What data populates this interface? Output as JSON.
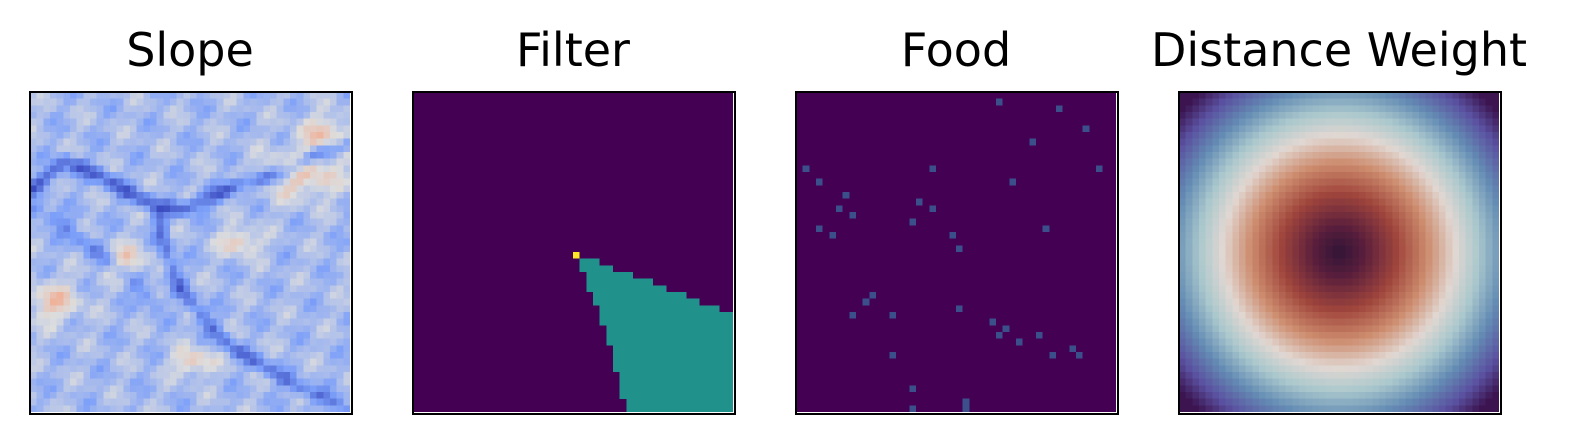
{
  "chart_data": [
    {
      "type": "heatmap",
      "title": "Slope",
      "grid": false,
      "colormap": "coolwarm",
      "grid_size": [
        48,
        48
      ],
      "description": "Terrain slope field; mostly light-blue with dark-blue ridge lines and light-red patches in the upper-right and lower-left"
    },
    {
      "type": "heatmap",
      "title": "Filter",
      "grid": false,
      "colormap": "viridis",
      "grid_size": [
        48,
        48
      ],
      "apex_cell": [
        24,
        24
      ],
      "apex_value": 1.0,
      "wedge_value": 0.5,
      "background_value": 0.0,
      "wedge_boundary_rows": [
        {
          "row": 25,
          "from_col": 25,
          "to_col": 27
        },
        {
          "row": 26,
          "from_col": 25,
          "to_col": 29
        },
        {
          "row": 27,
          "from_col": 26,
          "to_col": 32
        },
        {
          "row": 28,
          "from_col": 26,
          "to_col": 35
        },
        {
          "row": 29,
          "from_col": 26,
          "to_col": 37
        },
        {
          "row": 30,
          "from_col": 27,
          "to_col": 40
        },
        {
          "row": 31,
          "from_col": 27,
          "to_col": 42
        },
        {
          "row": 32,
          "from_col": 28,
          "to_col": 45
        },
        {
          "row": 33,
          "from_col": 28,
          "to_col": 47
        },
        {
          "row": 36,
          "from_col": 29,
          "to_col": 47
        },
        {
          "row": 40,
          "from_col": 30,
          "to_col": 47
        },
        {
          "row": 44,
          "from_col": 31,
          "to_col": 47
        },
        {
          "row": 47,
          "from_col": 32,
          "to_col": 47
        }
      ]
    },
    {
      "type": "heatmap",
      "title": "Food",
      "grid": false,
      "colormap": "viridis",
      "grid_size": [
        48,
        48
      ],
      "background_value": 0.0,
      "food_cells": [
        {
          "col": 30,
          "row": 1
        },
        {
          "col": 39,
          "row": 2
        },
        {
          "col": 43,
          "row": 5
        },
        {
          "col": 35,
          "row": 7
        },
        {
          "col": 1,
          "row": 11
        },
        {
          "col": 20,
          "row": 11
        },
        {
          "col": 45,
          "row": 11
        },
        {
          "col": 3,
          "row": 13
        },
        {
          "col": 32,
          "row": 13
        },
        {
          "col": 7,
          "row": 15
        },
        {
          "col": 18,
          "row": 16
        },
        {
          "col": 6,
          "row": 17
        },
        {
          "col": 20,
          "row": 17
        },
        {
          "col": 8,
          "row": 18
        },
        {
          "col": 17,
          "row": 19
        },
        {
          "col": 3,
          "row": 20
        },
        {
          "col": 37,
          "row": 20
        },
        {
          "col": 5,
          "row": 21
        },
        {
          "col": 23,
          "row": 21
        },
        {
          "col": 24,
          "row": 23
        },
        {
          "col": 11,
          "row": 30
        },
        {
          "col": 10,
          "row": 31
        },
        {
          "col": 24,
          "row": 32
        },
        {
          "col": 8,
          "row": 33
        },
        {
          "col": 14,
          "row": 33
        },
        {
          "col": 29,
          "row": 34
        },
        {
          "col": 31,
          "row": 35
        },
        {
          "col": 30,
          "row": 36
        },
        {
          "col": 36,
          "row": 36
        },
        {
          "col": 33,
          "row": 37
        },
        {
          "col": 41,
          "row": 38
        },
        {
          "col": 38,
          "row": 39
        },
        {
          "col": 14,
          "row": 39
        },
        {
          "col": 42,
          "row": 39
        },
        {
          "col": 17,
          "row": 44
        },
        {
          "col": 25,
          "row": 46
        },
        {
          "col": 17,
          "row": 47
        },
        {
          "col": 25,
          "row": 47
        }
      ]
    },
    {
      "type": "heatmap",
      "title": "Distance Weight",
      "grid": false,
      "colormap": "twilight_shifted",
      "grid_size": [
        48,
        48
      ],
      "description": "Radially symmetric weight: dark center, red/brown inner disk, white ring, blue-grey outer ring, purple corners"
    }
  ]
}
